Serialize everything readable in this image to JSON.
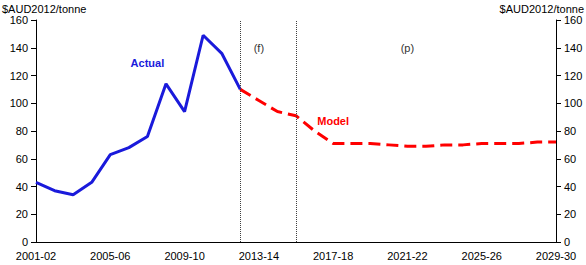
{
  "chart_data": {
    "type": "line",
    "y_label": "$AUD2012/tonne",
    "y2_label": "$AUD2012/tonne",
    "categories": [
      "2001-02",
      null,
      null,
      null,
      "2005-06",
      null,
      null,
      null,
      "2009-10",
      null,
      null,
      null,
      "2013-14",
      null,
      null,
      null,
      "2017-18",
      null,
      null,
      null,
      "2021-22",
      null,
      null,
      null,
      "2025-26",
      null,
      null,
      null,
      "2029-30"
    ],
    "series": [
      {
        "name": "Actual",
        "color": "#1a1adb",
        "line_style": "solid",
        "values": [
          43,
          37,
          34,
          43,
          63,
          68,
          76,
          114,
          94,
          149,
          136,
          110,
          null,
          null,
          null,
          null,
          null,
          null,
          null,
          null,
          null,
          null,
          null,
          null,
          null,
          null,
          null,
          null,
          null
        ]
      },
      {
        "name": "Model",
        "color": "#ff0000",
        "line_style": "dashed",
        "values": [
          null,
          null,
          null,
          null,
          null,
          null,
          null,
          null,
          null,
          null,
          null,
          110,
          102,
          94,
          91,
          80,
          71,
          71,
          71,
          70,
          69,
          69,
          70,
          70,
          71,
          71,
          71,
          72,
          72
        ]
      }
    ],
    "annotations": [
      {
        "text": "Actual",
        "x": 6,
        "y": 129,
        "color": "#1a1adb"
      },
      {
        "text": "Model",
        "x": 16,
        "y": 87,
        "color": "#ff0000"
      },
      {
        "text": "(f)",
        "x": 12,
        "y": 140,
        "color": "#333333"
      },
      {
        "text": "(p)",
        "x": 20,
        "y": 140,
        "color": "#333333"
      }
    ],
    "period_lines": [
      11,
      14
    ],
    "ylim": [
      0,
      160
    ],
    "yticks": [
      0,
      20,
      40,
      60,
      80,
      100,
      120,
      140,
      160
    ],
    "y2lim": [
      0,
      160
    ],
    "y2ticks": [
      0,
      20,
      40,
      60,
      80,
      100,
      120,
      140,
      160
    ],
    "grid": false
  }
}
